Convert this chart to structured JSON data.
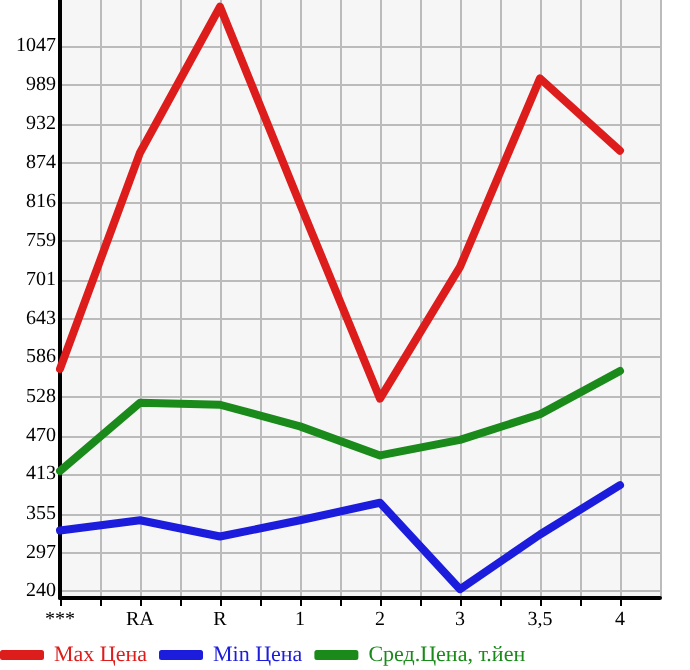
{
  "chart_data": {
    "type": "line",
    "categories": [
      "***",
      "RA",
      "R",
      "1",
      "2",
      "3",
      "3,5",
      "4"
    ],
    "series": [
      {
        "name": "Max Цена",
        "color": "#dd1c1c",
        "values": [
          569,
          889,
          1105,
          813,
          525,
          720,
          999,
          892
        ]
      },
      {
        "name": "Min Цена",
        "color": "#1c1cdd",
        "values": [
          330,
          345,
          321,
          345,
          371,
          243,
          324,
          397
        ]
      },
      {
        "name": "Сред.Цена, т.йен",
        "color": "#1a8a1a",
        "values": [
          418,
          519,
          516,
          484,
          441,
          464,
          502,
          566
        ]
      }
    ],
    "ylim": [
      230,
      1115
    ],
    "yticks": [
      240,
      297,
      355,
      413,
      470,
      528,
      586,
      643,
      701,
      759,
      816,
      874,
      932,
      989,
      1047
    ],
    "grid": true,
    "legend": "bottom",
    "marker": "none",
    "line_style": "solid"
  }
}
